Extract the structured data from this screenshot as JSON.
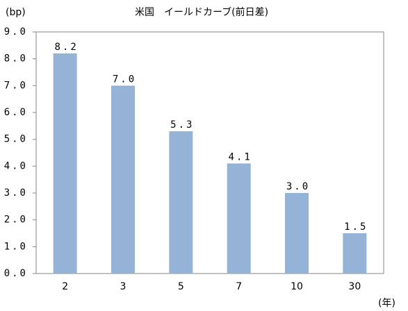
{
  "chart_data": {
    "type": "bar",
    "title": "米国　イールドカーブ(前日差)",
    "ylabel": "(bp)",
    "xlabel": "(年)",
    "categories": [
      "2",
      "3",
      "5",
      "7",
      "10",
      "30"
    ],
    "values": [
      8.2,
      7.0,
      5.3,
      4.1,
      3.0,
      1.5
    ],
    "value_labels": [
      "8.2",
      "7.0",
      "5.3",
      "4.1",
      "3.0",
      "1.5"
    ],
    "color": "#95b3d7",
    "ylim": [
      0,
      9
    ],
    "yticks": [
      {
        "value": 0,
        "label": "0.0"
      },
      {
        "value": 1,
        "label": "1.0"
      },
      {
        "value": 2,
        "label": "2.0"
      },
      {
        "value": 3,
        "label": "3.0"
      },
      {
        "value": 4,
        "label": "4.0"
      },
      {
        "value": 5,
        "label": "5.0"
      },
      {
        "value": 6,
        "label": "6.0"
      },
      {
        "value": 7,
        "label": "7.0"
      },
      {
        "value": 8,
        "label": "8.0"
      },
      {
        "value": 9,
        "label": "9.0"
      }
    ],
    "grid": false
  }
}
